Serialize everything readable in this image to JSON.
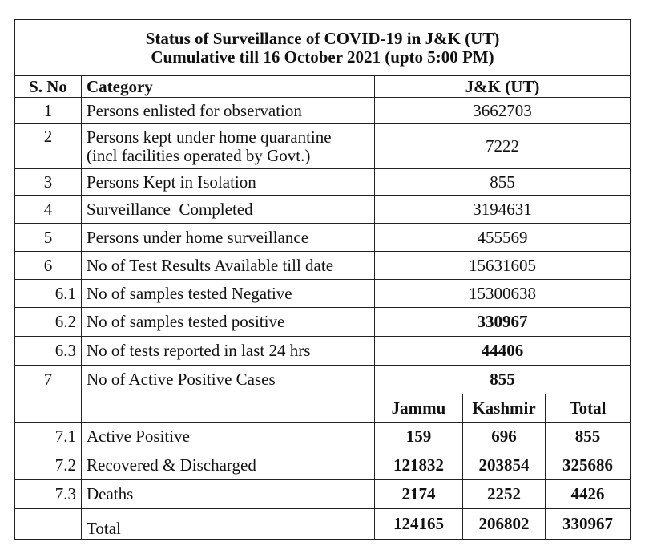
{
  "title_line1": "Status of Surveillance of COVID-19 in J&K (UT)",
  "title_line2": "Cumulative till 16 October 2021 (upto 5:00 PM)",
  "headers": {
    "sno": "S. No",
    "category": "Category",
    "value": "J&K (UT)"
  },
  "rows": [
    {
      "sno": "1",
      "category": "Persons enlisted for observation",
      "value": "3662703"
    },
    {
      "sno": "2",
      "category_line1": "Persons kept under home quarantine",
      "category_line2": "(incl facilities operated by Govt.)",
      "value": "7222"
    },
    {
      "sno": "3",
      "category": "Persons Kept in Isolation",
      "value": "855"
    },
    {
      "sno": "4",
      "category": "Surveillance  Completed",
      "value": "3194631"
    },
    {
      "sno": "5",
      "category": "Persons under home surveillance",
      "value": "455569"
    },
    {
      "sno": "6",
      "category": "No of Test Results Available till date",
      "value": "15631605"
    },
    {
      "sno": "6.1",
      "category": "No of samples tested Negative",
      "value": "15300638"
    },
    {
      "sno": "6.2",
      "category": "No of samples tested positive",
      "value": "330967"
    },
    {
      "sno": "6.3",
      "category": "No of tests reported in last 24 hrs",
      "value": "44406"
    },
    {
      "sno": "7",
      "category": "No of Active Positive Cases",
      "value": "855"
    }
  ],
  "split_headers": {
    "jammu": "Jammu",
    "kashmir": "Kashmir",
    "total": "Total"
  },
  "split_rows": [
    {
      "sno": "7.1",
      "category": "Active Positive",
      "jammu": "159",
      "kashmir": "696",
      "total": "855"
    },
    {
      "sno": "7.2",
      "category": "Recovered & Discharged",
      "jammu": "121832",
      "kashmir": "203854",
      "total": "325686"
    },
    {
      "sno": "7.3",
      "category": "Deaths",
      "jammu": "2174",
      "kashmir": "2252",
      "total": "4426"
    }
  ],
  "total_row": {
    "category": "Total",
    "jammu": "124165",
    "kashmir": "206802",
    "total": "330967"
  }
}
